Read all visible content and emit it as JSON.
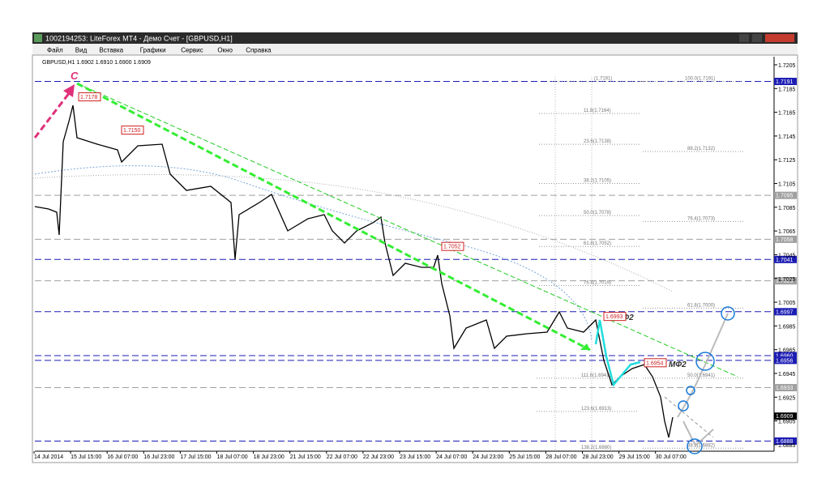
{
  "window": {
    "title": "1002194253: LiteForex MT4 - Демо Счет - [GBPUSD,H1]",
    "menu": [
      "Файл",
      "Вид",
      "Вставка",
      "Графики",
      "Сервис",
      "Окно",
      "Справка"
    ]
  },
  "chart": {
    "header": "GBPUSD,H1  1.6902 1.6910 1.6900 1.6909",
    "price_axis": [
      "1.7205",
      "1.7185",
      "1.7165",
      "1.7145",
      "1.7125",
      "1.7105",
      "1.7085",
      "1.7065",
      "1.7045",
      "1.7025",
      "1.7005",
      "1.6985",
      "1.6965",
      "1.6945",
      "1.6925",
      "1.6905",
      "1.6885"
    ],
    "price_tags": [
      "1.7191",
      "1.7095",
      "1.7058",
      "1.7041",
      "1.7023",
      "1.6997",
      "1.6960",
      "1.6956",
      "1.6933",
      "1.6909",
      "1.6888"
    ],
    "time_axis": [
      "14 Jul 2014",
      "15 Jul 15:00",
      "16 Jul 07:00",
      "16 Jul 23:00",
      "17 Jul 15:00",
      "18 Jul 07:00",
      "18 Jul 23:00",
      "21 Jul 15:00",
      "22 Jul 07:00",
      "22 Jul 23:00",
      "23 Jul 15:00",
      "24 Jul 07:00",
      "24 Jul 23:00",
      "25 Jul 15:00",
      "28 Jul 07:00",
      "28 Jul 23:00",
      "29 Jul 15:00",
      "30 Jul 07:00"
    ],
    "fib_labels": [
      "(1.7191)",
      "100.0(1.7191)",
      "11.8(1.7164)",
      "23.6(1.7138)",
      "88.2(1.7132)",
      "38.2(1.7105)",
      "50.0(1.7078)",
      "76.4(1.7073)",
      "61.8(1.7052)",
      "76.4(1.7019)",
      "61.8(1.7000)",
      "111.8(1.6941)",
      "50.0(1.6941)",
      "123.6(1.6913)",
      "138.2(1.6880)",
      "38.2(1.6882)"
    ],
    "order_labels": [
      "1.7178",
      "1.7150",
      "1.7052",
      "1.6993",
      "1.6954"
    ],
    "annotations": {
      "point": "C",
      "wave_1": "МФ2",
      "wave_2": "МФ2"
    }
  }
}
